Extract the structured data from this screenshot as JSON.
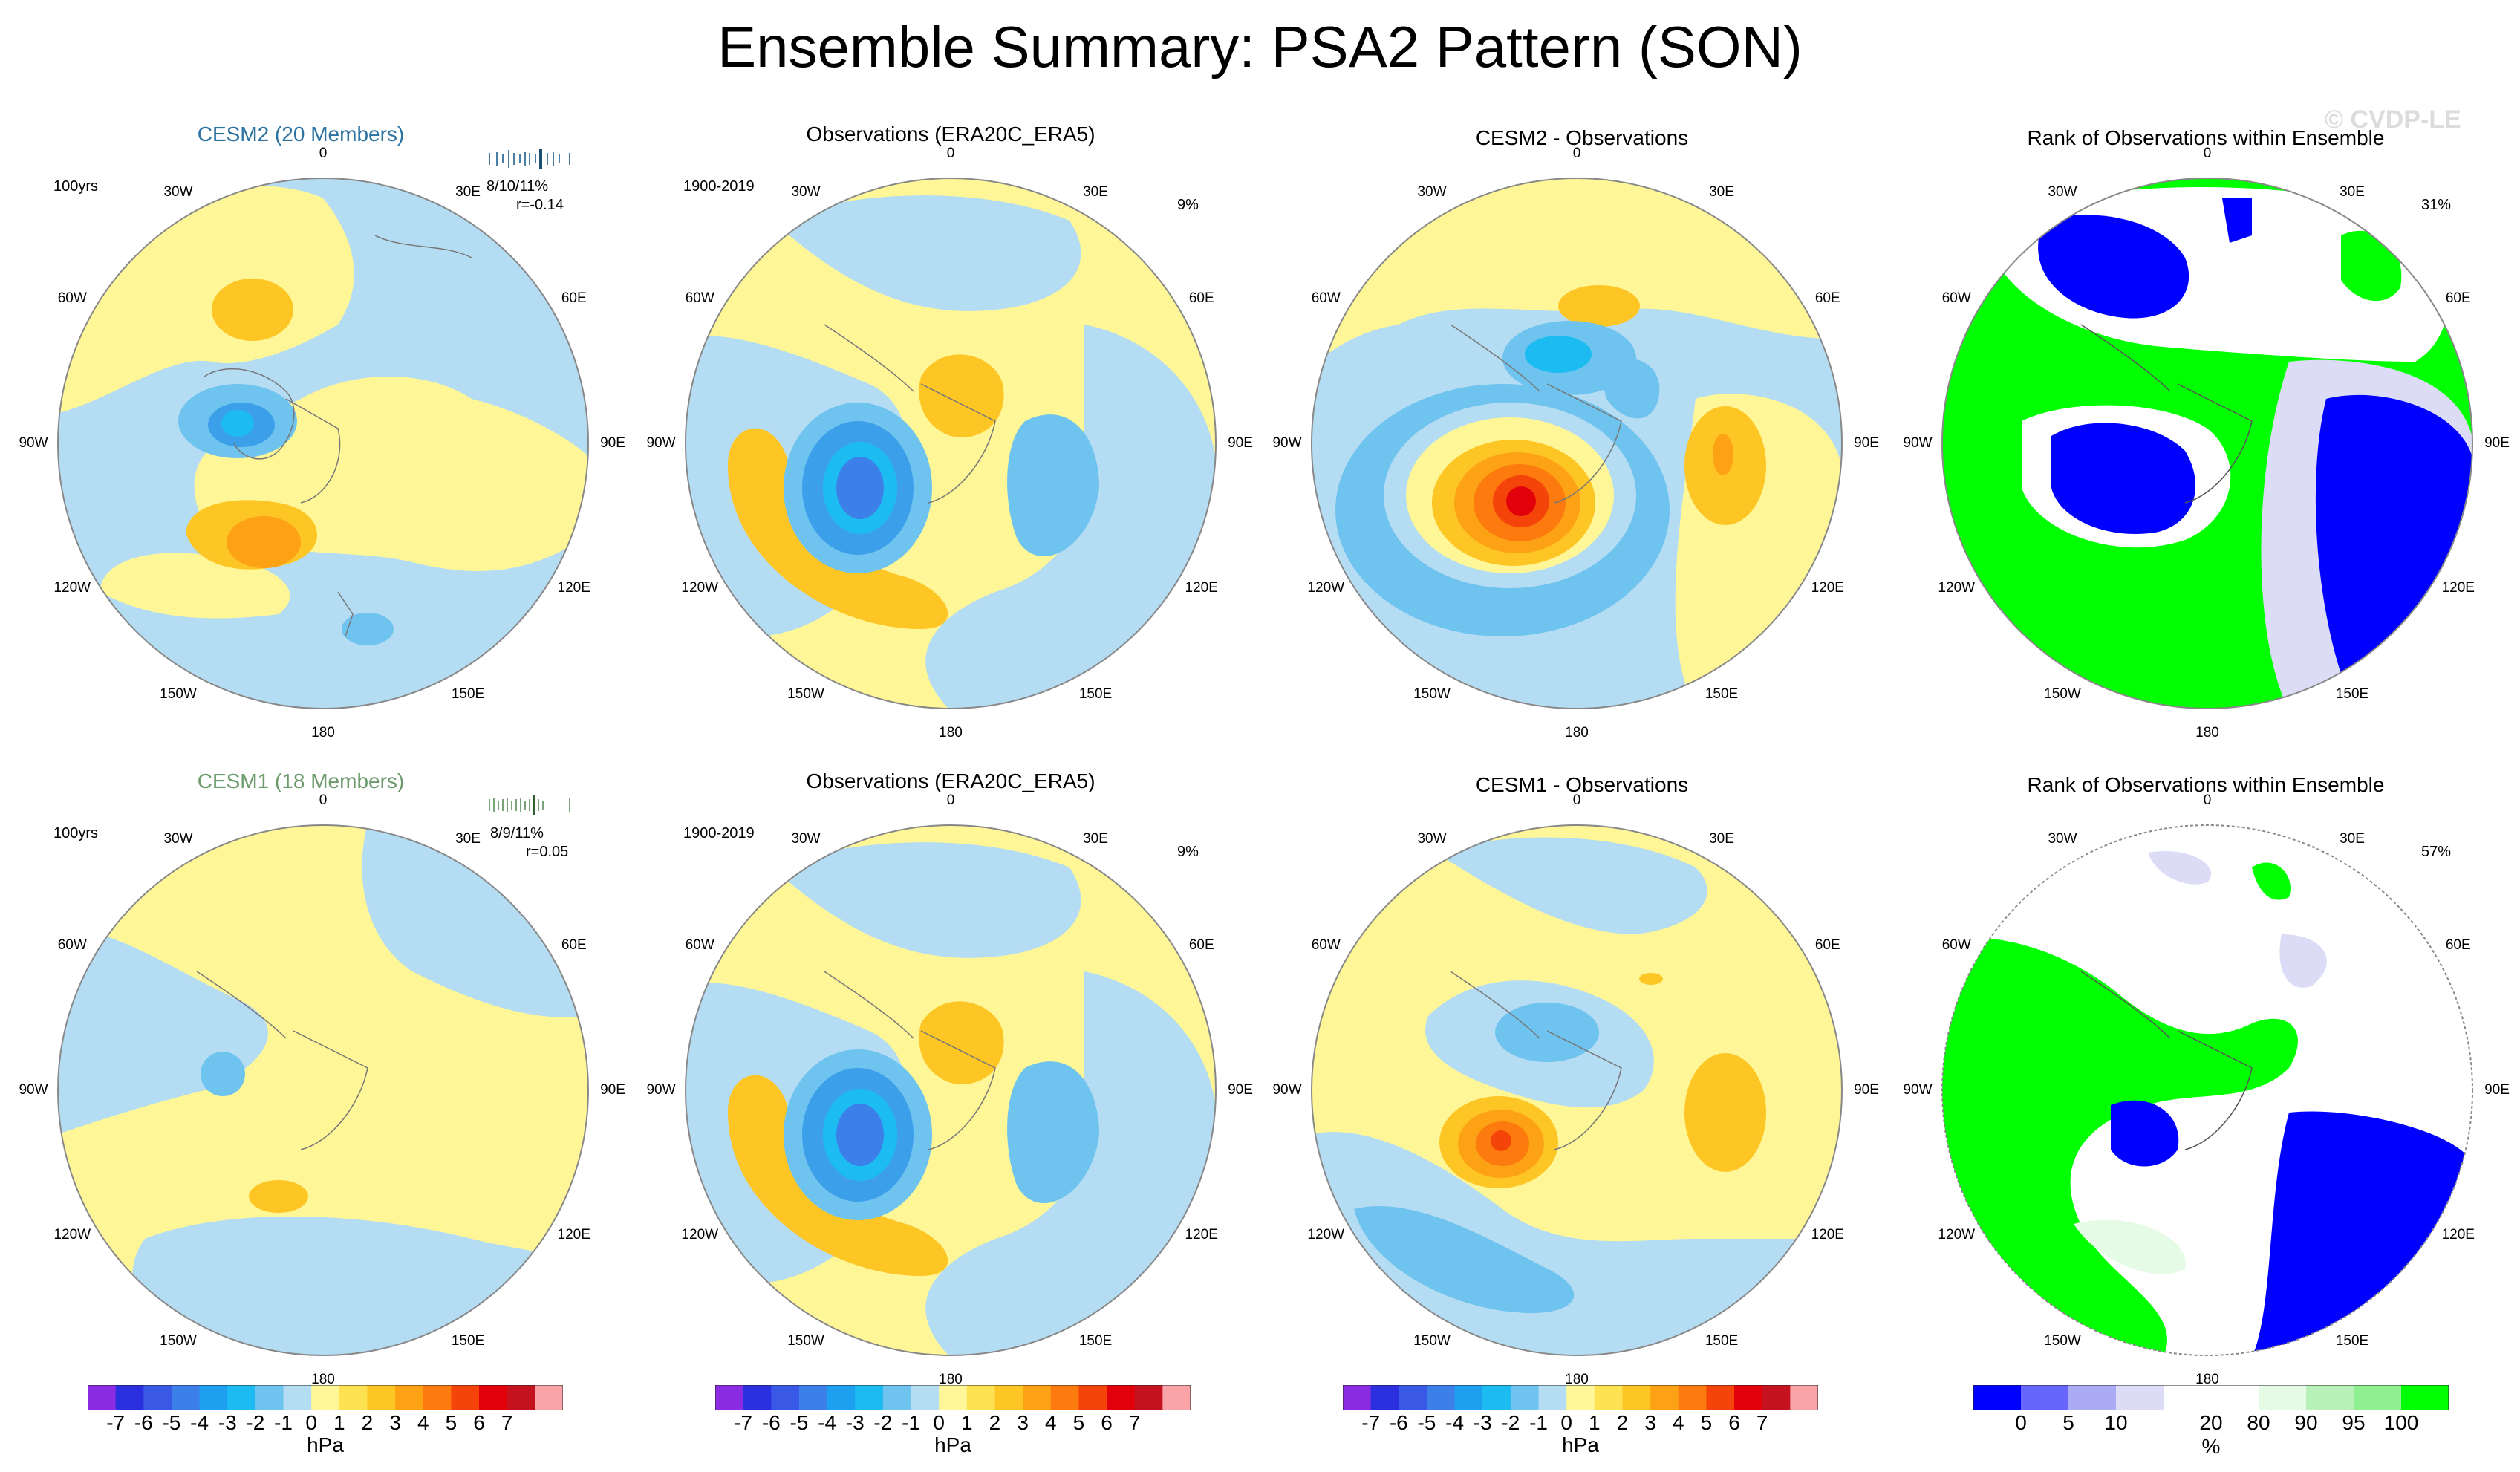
{
  "title": "Ensemble Summary: PSA2 Pattern (SON)",
  "watermark": "© CVDP-LE",
  "colors": {
    "diverging": [
      "#8b2be2",
      "#2a2fe0",
      "#3a58e6",
      "#3c7fe8",
      "#1ea0f0",
      "#1cbcf2",
      "#6fc3ef",
      "#b4dcf2",
      "#fef697",
      "#fee252",
      "#fdc625",
      "#fda214",
      "#fc7a0e",
      "#f5440a",
      "#e2000b",
      "#c4131e",
      "#f7a3a8"
    ],
    "rank": [
      "#0000ff",
      "#6666ff",
      "#aaaaf5",
      "#dcdcf7",
      "#ffffff",
      "#ffffff",
      "#e6fbe6",
      "#b8f2b8",
      "#8ef08e",
      "#00ff00"
    ]
  },
  "longitude_labels": [
    "0",
    "30E",
    "60E",
    "90E",
    "120E",
    "150E",
    "180",
    "150W",
    "120W",
    "90W",
    "60W",
    "30W"
  ],
  "rows": [
    {
      "model_title": "CESM2 (20 Members)",
      "model_color": "#2c72a0",
      "years": "100yrs",
      "stat": "8/10/11%",
      "corr": "r=-0.14",
      "obs_title": "Observations (ERA20C_ERA5)",
      "obs_years": "1900-2019",
      "obs_pct": "9%",
      "diff_title": "CESM2 - Observations",
      "rank_title": "Rank of Observations within Ensemble",
      "rank_pct": "31%"
    },
    {
      "model_title": "CESM1 (18 Members)",
      "model_color": "#6b9a6b",
      "years": "100yrs",
      "stat": "8/9/11%",
      "corr": "r=0.05",
      "obs_title": "Observations (ERA20C_ERA5)",
      "obs_years": "1900-2019",
      "obs_pct": "9%",
      "diff_title": "CESM1 - Observations",
      "rank_title": "Rank of Observations within Ensemble",
      "rank_pct": "57%"
    }
  ],
  "colorbar": {
    "ticks": [
      "-7",
      "-6",
      "-5",
      "-4",
      "-3",
      "-2",
      "-1",
      "0",
      "1",
      "2",
      "3",
      "4",
      "5",
      "6",
      "7"
    ],
    "unit": "hPa"
  },
  "rank_colorbar": {
    "ticks": [
      "0",
      "5",
      "10",
      "20",
      "80",
      "90",
      "95",
      "100"
    ],
    "unit": "%"
  }
}
